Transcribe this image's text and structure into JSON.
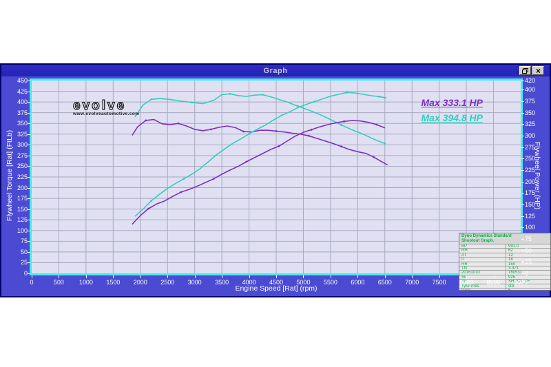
{
  "window": {
    "title": "Graph",
    "controls": {
      "restore": "restore-window",
      "close_glyph": "×"
    }
  },
  "branding": {
    "logo": "evolve",
    "url": "www.evolveautomotive.com"
  },
  "annotations": {
    "max_stock": "Max 333.1 HP",
    "max_tuned": "Max 394.8 HP"
  },
  "info_box": {
    "header_line1": "Dyno Dynamics Standard",
    "header_line2": "Shootout Graph.",
    "rows": [
      [
        "BP",
        "991.0"
      ],
      [
        "RH",
        "62"
      ],
      [
        "AT",
        "12"
      ],
      [
        "IT",
        "18"
      ],
      [
        "RR",
        "150"
      ],
      [
        "TN",
        "3.471"
      ],
      [
        "20161010",
        "160531"
      ],
      [
        "SP",
        "925"
      ],
      [
        "SF",
        "SHOOT_6F"
      ],
      [
        "Tyre Pres",
        "std"
      ],
      [
        "Gear",
        "5"
      ]
    ]
  },
  "colors": {
    "window_body": "#4b4ad2",
    "titlebar": "#2a29bf",
    "plot_bg": "#e0e0f2",
    "grid": "#a9a9c0",
    "frame": "#46ecec",
    "cyan_series": "#2fcfbf",
    "purple_series": "#7c2fc4",
    "axis_text": "#ffffff",
    "info_green": "#00b048"
  },
  "chart_data": {
    "type": "line",
    "title": "",
    "xlabel": "Engine Speed [Rat] (rpm)",
    "ylabel_left": "Flywheel Torque [Rat] (FtLb)",
    "ylabel_right": "Flywheel Power (HP)",
    "x_range": [
      0,
      9000
    ],
    "x_tick_step": 500,
    "y_left_range": [
      0,
      450
    ],
    "y_left_tick_step": 25,
    "y_right_range": [
      0,
      420
    ],
    "y_right_ticks": [
      420,
      400,
      375,
      350,
      325,
      300,
      275,
      250,
      225,
      200,
      175,
      150,
      125,
      100,
      75,
      50,
      25,
      0
    ],
    "grid": true,
    "legend_position": "none",
    "series": [
      {
        "name": "torque_tuned",
        "axis": "left",
        "color": "#2fcfbf",
        "points": [
          [
            1900,
            365
          ],
          [
            2050,
            393
          ],
          [
            2200,
            406
          ],
          [
            2350,
            408
          ],
          [
            2550,
            406
          ],
          [
            2750,
            402
          ],
          [
            2950,
            399
          ],
          [
            3150,
            396
          ],
          [
            3350,
            404
          ],
          [
            3500,
            417
          ],
          [
            3650,
            419
          ],
          [
            3800,
            415
          ],
          [
            3950,
            413
          ],
          [
            4100,
            416
          ],
          [
            4250,
            417
          ],
          [
            4400,
            412
          ],
          [
            4550,
            406
          ],
          [
            4700,
            400
          ],
          [
            4900,
            390
          ],
          [
            5100,
            381
          ],
          [
            5300,
            371
          ],
          [
            5500,
            359
          ],
          [
            5700,
            346
          ],
          [
            5900,
            335
          ],
          [
            6100,
            325
          ],
          [
            6300,
            313
          ],
          [
            6500,
            303
          ]
        ]
      },
      {
        "name": "torque_stock",
        "axis": "left",
        "color": "#7c2fc4",
        "points": [
          [
            1850,
            322
          ],
          [
            1950,
            342
          ],
          [
            2100,
            357
          ],
          [
            2250,
            359
          ],
          [
            2400,
            349
          ],
          [
            2550,
            347
          ],
          [
            2700,
            350
          ],
          [
            2850,
            344
          ],
          [
            3000,
            336
          ],
          [
            3150,
            333
          ],
          [
            3300,
            336
          ],
          [
            3450,
            341
          ],
          [
            3600,
            344
          ],
          [
            3750,
            340
          ],
          [
            3900,
            331
          ],
          [
            4050,
            330
          ],
          [
            4200,
            334
          ],
          [
            4350,
            334
          ],
          [
            4500,
            332
          ],
          [
            4650,
            330
          ],
          [
            4800,
            327
          ],
          [
            4950,
            325
          ],
          [
            5100,
            321
          ],
          [
            5250,
            315
          ],
          [
            5400,
            309
          ],
          [
            5550,
            303
          ],
          [
            5700,
            296
          ],
          [
            5850,
            289
          ],
          [
            6000,
            284
          ],
          [
            6150,
            280
          ],
          [
            6300,
            271
          ],
          [
            6450,
            260
          ],
          [
            6550,
            253
          ]
        ]
      },
      {
        "name": "power_tuned",
        "axis": "right",
        "color": "#2fcfbf",
        "points": [
          [
            1900,
            124
          ],
          [
            2050,
            140
          ],
          [
            2200,
            158
          ],
          [
            2350,
            172
          ],
          [
            2500,
            185
          ],
          [
            2650,
            196
          ],
          [
            2800,
            206
          ],
          [
            2950,
            216
          ],
          [
            3100,
            228
          ],
          [
            3250,
            243
          ],
          [
            3400,
            258
          ],
          [
            3550,
            271
          ],
          [
            3700,
            283
          ],
          [
            3850,
            293
          ],
          [
            4000,
            304
          ],
          [
            4150,
            314
          ],
          [
            4300,
            323
          ],
          [
            4450,
            334
          ],
          [
            4600,
            344
          ],
          [
            4750,
            352
          ],
          [
            4900,
            361
          ],
          [
            5050,
            368
          ],
          [
            5200,
            374
          ],
          [
            5350,
            380
          ],
          [
            5500,
            386
          ],
          [
            5650,
            390
          ],
          [
            5800,
            394
          ],
          [
            5950,
            393
          ],
          [
            6100,
            390
          ],
          [
            6250,
            387
          ],
          [
            6400,
            385
          ],
          [
            6530,
            382
          ]
        ]
      },
      {
        "name": "power_stock",
        "axis": "right",
        "color": "#7c2fc4",
        "points": [
          [
            1850,
            107
          ],
          [
            2000,
            126
          ],
          [
            2150,
            141
          ],
          [
            2300,
            151
          ],
          [
            2450,
            158
          ],
          [
            2600,
            168
          ],
          [
            2750,
            177
          ],
          [
            2900,
            183
          ],
          [
            3050,
            190
          ],
          [
            3200,
            198
          ],
          [
            3350,
            206
          ],
          [
            3500,
            216
          ],
          [
            3650,
            225
          ],
          [
            3800,
            233
          ],
          [
            3950,
            243
          ],
          [
            4100,
            252
          ],
          [
            4250,
            261
          ],
          [
            4400,
            270
          ],
          [
            4550,
            277
          ],
          [
            4700,
            288
          ],
          [
            4850,
            299
          ],
          [
            5000,
            307
          ],
          [
            5150,
            313
          ],
          [
            5300,
            319
          ],
          [
            5450,
            324
          ],
          [
            5600,
            328
          ],
          [
            5750,
            331
          ],
          [
            5900,
            333
          ],
          [
            6050,
            332
          ],
          [
            6200,
            329
          ],
          [
            6350,
            324
          ],
          [
            6500,
            317
          ]
        ]
      }
    ]
  }
}
